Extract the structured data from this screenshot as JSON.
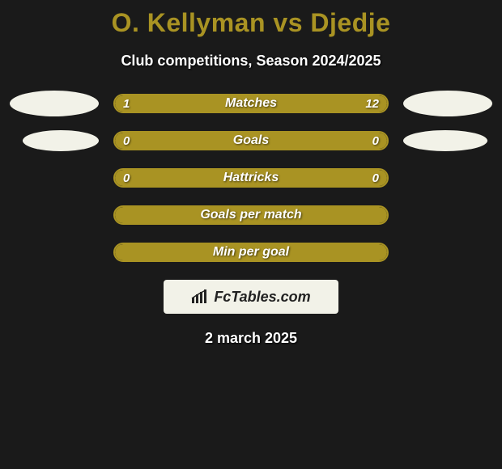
{
  "title": {
    "text": "O. Kellyman vs Djedje",
    "color": "#a99323"
  },
  "subtitle": "Club competitions, Season 2024/2025",
  "accent_color": "#a99323",
  "fill_color": "#a99323",
  "neutral_color": "#f2f2e8",
  "background_color": "#1a1a1a",
  "rows": [
    {
      "label": "Matches",
      "left_value": "1",
      "right_value": "12",
      "left_pct": 18,
      "right_pct": 82,
      "left_fill": "#a99323",
      "right_fill": "#a99323",
      "show_ellipses": true,
      "ellipse_left_color": "#f2f2e8",
      "ellipse_right_color": "#f2f2e8"
    },
    {
      "label": "Goals",
      "left_value": "0",
      "right_value": "0",
      "left_pct": 50,
      "right_pct": 50,
      "left_fill": "#a99323",
      "right_fill": "#a99323",
      "show_ellipses": true,
      "ellipse_left_color": "#f2f2e8",
      "ellipse_right_color": "#f2f2e8"
    },
    {
      "label": "Hattricks",
      "left_value": "0",
      "right_value": "0",
      "left_pct": 50,
      "right_pct": 50,
      "left_fill": "#a99323",
      "right_fill": "#a99323",
      "show_ellipses": false
    },
    {
      "label": "Goals per match",
      "left_value": "",
      "right_value": "",
      "left_pct": 50,
      "right_pct": 50,
      "left_fill": "#a99323",
      "right_fill": "#a99323",
      "show_ellipses": false
    },
    {
      "label": "Min per goal",
      "left_value": "",
      "right_value": "",
      "left_pct": 50,
      "right_pct": 50,
      "left_fill": "#a99323",
      "right_fill": "#a99323",
      "show_ellipses": false
    }
  ],
  "watermark": "FcTables.com",
  "date": "2 march 2025"
}
